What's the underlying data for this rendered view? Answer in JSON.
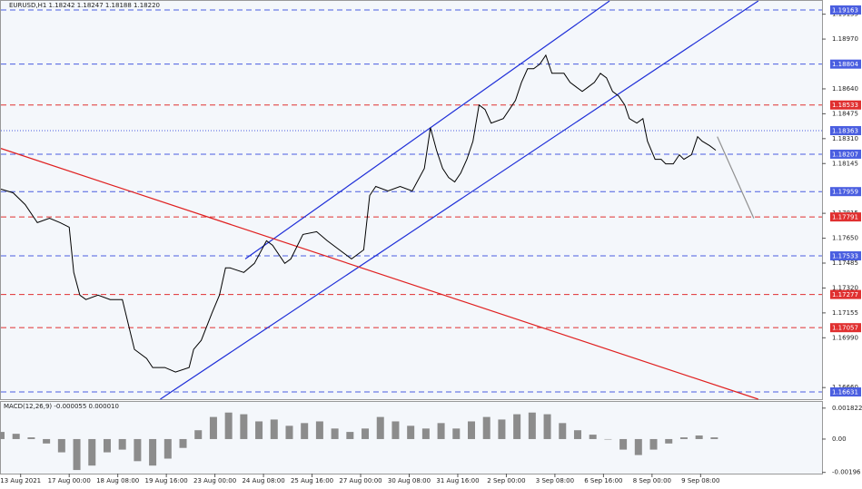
{
  "chart_data": [
    {
      "type": "line",
      "title": "EURUSD,H1  1.18242 1.18247 1.18188 1.18220",
      "color": "#000000",
      "xlim": [
        0,
        541
      ],
      "ylim": [
        1.16583,
        1.19223
      ],
      "xticks": [
        {
          "value": 13,
          "label": "13 Aug 2021"
        },
        {
          "value": 45,
          "label": "17 Aug 00:00"
        },
        {
          "value": 77,
          "label": "18 Aug 08:00"
        },
        {
          "value": 109,
          "label": "19 Aug 16:00"
        },
        {
          "value": 141,
          "label": "23 Aug 00:00"
        },
        {
          "value": 173,
          "label": "24 Aug 08:00"
        },
        {
          "value": 205,
          "label": "25 Aug 16:00"
        },
        {
          "value": 237,
          "label": "27 Aug 00:00"
        },
        {
          "value": 269,
          "label": "30 Aug 08:00"
        },
        {
          "value": 301,
          "label": "31 Aug 16:00"
        },
        {
          "value": 333,
          "label": "2 Sep 00:00"
        },
        {
          "value": 365,
          "label": "3 Sep 08:00"
        },
        {
          "value": 397,
          "label": "6 Sep 16:00"
        },
        {
          "value": 429,
          "label": "8 Sep 00:00"
        },
        {
          "value": 461,
          "label": "9 Sep 08:00"
        }
      ],
      "yticks": [
        1.19135,
        {
          "value": 1.1897,
          "label": "1.18970"
        },
        {
          "value": 1.1864,
          "label": "1.18640"
        },
        1.18475,
        {
          "value": 1.1831,
          "label": "1.18310"
        },
        1.18145,
        1.17815,
        {
          "value": 1.1765,
          "label": "1.17650"
        },
        1.17485,
        {
          "value": 1.1732,
          "label": "1.17320"
        },
        1.17155,
        {
          "value": 1.1699,
          "label": "1.16990"
        },
        {
          "value": 1.1666,
          "label": "1.16660"
        }
      ],
      "levels": [
        {
          "value": 1.19163,
          "color": "#4a5ee0",
          "style": "dashed"
        },
        {
          "value": 1.18804,
          "color": "#4a5ee0",
          "style": "dashed"
        },
        {
          "value": 1.18533,
          "color": "#e03030",
          "style": "dashed"
        },
        {
          "value": 1.18363,
          "color": "#4a5ee0",
          "style": "dotted"
        },
        {
          "value": 1.18207,
          "color": "#4a5ee0",
          "style": "dashed"
        },
        {
          "value": 1.17959,
          "color": "#4a5ee0",
          "style": "dashed"
        },
        {
          "value": 1.17791,
          "color": "#e03030",
          "style": "dashed"
        },
        {
          "value": 1.17533,
          "color": "#4a5ee0",
          "style": "dashed"
        },
        {
          "value": 1.17277,
          "color": "#e03030",
          "style": "dashed"
        },
        {
          "value": 1.17057,
          "color": "#e03030",
          "style": "dashed"
        },
        {
          "value": 1.16631,
          "color": "#4a5ee0",
          "style": "dashed"
        }
      ],
      "trendlines": [
        {
          "x": [
            105,
            499
          ],
          "values": [
            1.16583,
            1.19223
          ],
          "color": "#1f2fd8"
        },
        {
          "x": [
            161,
            401
          ],
          "values": [
            1.17513,
            1.19223
          ],
          "color": "#1f2fd8"
        },
        {
          "x": [
            0,
            499
          ],
          "values": [
            1.18245,
            1.16583
          ],
          "color": "#e02020"
        },
        {
          "x": [
            472,
            496
          ],
          "values": [
            1.18323,
            1.17783
          ],
          "color": "#909090"
        }
      ],
      "x": [
        0,
        8,
        16,
        24,
        32,
        39,
        45,
        48,
        52,
        56,
        64,
        72,
        80,
        88,
        96,
        100,
        108,
        115,
        124,
        127,
        132,
        139,
        144,
        148,
        151,
        160,
        167,
        175,
        179,
        187,
        191,
        199,
        208,
        215,
        223,
        231,
        239,
        243,
        247,
        255,
        263,
        271,
        279,
        283,
        287,
        291,
        295,
        299,
        303,
        307,
        311,
        315,
        319,
        323,
        331,
        339,
        343,
        347,
        351,
        355,
        359,
        363,
        367,
        371,
        375,
        379,
        383,
        387,
        391,
        395,
        399,
        403,
        407,
        411,
        414,
        419,
        423,
        426,
        431,
        435,
        438,
        443,
        447,
        450,
        455,
        459,
        462,
        467,
        471
      ],
      "values": [
        1.17975,
        1.17951,
        1.17873,
        1.17753,
        1.17783,
        1.17753,
        1.17723,
        1.17423,
        1.17273,
        1.17243,
        1.17273,
        1.17243,
        1.17243,
        1.16913,
        1.16853,
        1.16793,
        1.16793,
        1.16763,
        1.16793,
        1.16913,
        1.16973,
        1.17153,
        1.17273,
        1.17453,
        1.17453,
        1.17423,
        1.17483,
        1.17633,
        1.17603,
        1.17483,
        1.17513,
        1.17675,
        1.17693,
        1.17633,
        1.17573,
        1.17513,
        1.17573,
        1.17933,
        1.17993,
        1.17963,
        1.17993,
        1.17963,
        1.18113,
        1.18383,
        1.18233,
        1.18113,
        1.18053,
        1.18023,
        1.18083,
        1.18173,
        1.18293,
        1.18533,
        1.18503,
        1.18413,
        1.18443,
        1.18563,
        1.18683,
        1.18773,
        1.18773,
        1.18803,
        1.18863,
        1.18743,
        1.18743,
        1.18743,
        1.18683,
        1.18653,
        1.18623,
        1.18653,
        1.18683,
        1.18743,
        1.18713,
        1.18623,
        1.18593,
        1.18533,
        1.18443,
        1.18413,
        1.18443,
        1.18293,
        1.18173,
        1.18173,
        1.18143,
        1.18143,
        1.18203,
        1.18173,
        1.18203,
        1.18323,
        1.18293,
        1.18263,
        1.18233
      ]
    },
    {
      "type": "bar",
      "title": "MACD(12,26,9) -0.000055 0.000010",
      "color": "#8c8c8c",
      "xlim": [
        0,
        541
      ],
      "ylim": [
        -0.00203,
        0.002186
      ],
      "yticks": [
        0.001822,
        {
          "value": 0,
          "label": "0.00"
        },
        -0.00196
      ],
      "x": [
        0,
        10,
        20,
        30,
        40,
        50,
        60,
        70,
        80,
        90,
        100,
        110,
        120,
        130,
        140,
        150,
        160,
        170,
        180,
        190,
        200,
        210,
        220,
        230,
        240,
        250,
        260,
        270,
        280,
        290,
        300,
        310,
        320,
        330,
        340,
        350,
        360,
        370,
        380,
        390,
        400,
        410,
        420,
        430,
        440,
        450,
        460,
        470
      ],
      "values": [
        0.00042,
        0.00031,
        0.0001,
        -0.00026,
        -0.00078,
        -0.00182,
        -0.00156,
        -0.00078,
        -0.00062,
        -0.0013,
        -0.00156,
        -0.00115,
        -0.00052,
        0.00052,
        0.0013,
        0.00156,
        0.00146,
        0.00104,
        0.00115,
        0.00078,
        0.00094,
        0.00104,
        0.00062,
        0.00042,
        0.00062,
        0.0013,
        0.00104,
        0.00078,
        0.00062,
        0.00094,
        0.00062,
        0.00104,
        0.0013,
        0.00115,
        0.00146,
        0.00156,
        0.00146,
        0.00094,
        0.00052,
        0.00026,
        0,
        -0.00062,
        -0.00094,
        -0.00062,
        -0.00026,
        0.0001,
        0.00021,
        0.0001
      ]
    }
  ]
}
